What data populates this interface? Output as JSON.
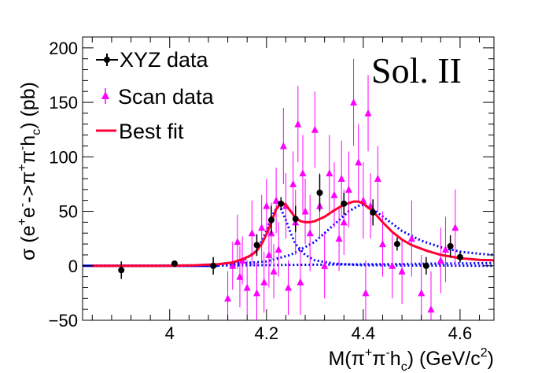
{
  "chart_data": {
    "type": "scatter",
    "title": "",
    "xlabel": "M(π⁺π⁻h_c) (GeV/c²)",
    "ylabel": "σ (e⁺e⁻->π⁺π⁻h_c) (pb)",
    "xlim": [
      3.82,
      4.67
    ],
    "ylim": [
      -50,
      210
    ],
    "x_ticks": [
      4.0,
      4.2,
      4.4,
      4.6
    ],
    "x_tick_labels": [
      "4",
      "4.2",
      "4.4",
      "4.6"
    ],
    "y_ticks": [
      -50,
      0,
      50,
      100,
      150,
      200
    ],
    "y_tick_labels": [
      "−50",
      "0",
      "50",
      "100",
      "150",
      "200"
    ],
    "annotation": "Sol. II",
    "legend_position": "top-left",
    "colors": {
      "xyz": "#000000",
      "scan": "#ff00ff",
      "best_fit": "#ff0033",
      "components": "#0000ff"
    },
    "series": [
      {
        "name": "XYZ data",
        "kind": "points",
        "marker": "circle",
        "points": [
          {
            "x": 3.9,
            "y": -4,
            "err": 8
          },
          {
            "x": 4.01,
            "y": 2,
            "err": 3
          },
          {
            "x": 4.09,
            "y": 0,
            "err": 8
          },
          {
            "x": 4.18,
            "y": 19,
            "err": 10
          },
          {
            "x": 4.21,
            "y": 42,
            "err": 13
          },
          {
            "x": 4.23,
            "y": 57,
            "err": 6
          },
          {
            "x": 4.26,
            "y": 43,
            "err": 12
          },
          {
            "x": 4.31,
            "y": 67,
            "err": 17
          },
          {
            "x": 4.36,
            "y": 57,
            "err": 10
          },
          {
            "x": 4.42,
            "y": 49,
            "err": 12
          },
          {
            "x": 4.47,
            "y": 20,
            "err": 6
          },
          {
            "x": 4.53,
            "y": 0,
            "err": 8
          },
          {
            "x": 4.58,
            "y": 18,
            "err": 10
          },
          {
            "x": 4.6,
            "y": 8,
            "err": 5
          }
        ]
      },
      {
        "name": "Scan data",
        "kind": "points",
        "marker": "triangle",
        "points": [
          {
            "x": 4.12,
            "y": -30,
            "err": 25
          },
          {
            "x": 4.13,
            "y": 0,
            "err": 22
          },
          {
            "x": 4.14,
            "y": 22,
            "err": 25
          },
          {
            "x": 4.145,
            "y": -10,
            "err": 28
          },
          {
            "x": 4.15,
            "y": 5,
            "err": 22
          },
          {
            "x": 4.16,
            "y": -20,
            "err": 25
          },
          {
            "x": 4.17,
            "y": 30,
            "err": 30
          },
          {
            "x": 4.18,
            "y": -25,
            "err": 28
          },
          {
            "x": 4.19,
            "y": 35,
            "err": 30
          },
          {
            "x": 4.195,
            "y": -15,
            "err": 28
          },
          {
            "x": 4.2,
            "y": 55,
            "err": 25
          },
          {
            "x": 4.205,
            "y": 10,
            "err": 30
          },
          {
            "x": 4.21,
            "y": 30,
            "err": 28
          },
          {
            "x": 4.215,
            "y": -5,
            "err": 25
          },
          {
            "x": 4.22,
            "y": 60,
            "err": 30
          },
          {
            "x": 4.225,
            "y": 15,
            "err": 25
          },
          {
            "x": 4.235,
            "y": 110,
            "err": 35
          },
          {
            "x": 4.24,
            "y": 55,
            "err": 30
          },
          {
            "x": 4.245,
            "y": -20,
            "err": 25
          },
          {
            "x": 4.255,
            "y": 75,
            "err": 30
          },
          {
            "x": 4.26,
            "y": 40,
            "err": 30
          },
          {
            "x": 4.265,
            "y": 130,
            "err": 35
          },
          {
            "x": 4.27,
            "y": -15,
            "err": 30
          },
          {
            "x": 4.275,
            "y": 85,
            "err": 35
          },
          {
            "x": 4.28,
            "y": 50,
            "err": 30
          },
          {
            "x": 4.29,
            "y": 30,
            "err": 35
          },
          {
            "x": 4.3,
            "y": 125,
            "err": 35
          },
          {
            "x": 4.31,
            "y": 55,
            "err": 30
          },
          {
            "x": 4.32,
            "y": 0,
            "err": 30
          },
          {
            "x": 4.33,
            "y": 85,
            "err": 35
          },
          {
            "x": 4.34,
            "y": 65,
            "err": 30
          },
          {
            "x": 4.35,
            "y": 25,
            "err": 30
          },
          {
            "x": 4.355,
            "y": 80,
            "err": 35
          },
          {
            "x": 4.36,
            "y": 40,
            "err": 30
          },
          {
            "x": 4.37,
            "y": 70,
            "err": 35
          },
          {
            "x": 4.38,
            "y": 150,
            "err": 40
          },
          {
            "x": 4.39,
            "y": 95,
            "err": 35
          },
          {
            "x": 4.4,
            "y": 60,
            "err": 35
          },
          {
            "x": 4.405,
            "y": -25,
            "err": 30
          },
          {
            "x": 4.41,
            "y": 140,
            "err": 35
          },
          {
            "x": 4.415,
            "y": 55,
            "err": 30
          },
          {
            "x": 4.43,
            "y": 80,
            "err": 30
          },
          {
            "x": 4.44,
            "y": 20,
            "err": 30
          },
          {
            "x": 4.46,
            "y": 0,
            "err": 30
          },
          {
            "x": 4.48,
            "y": -5,
            "err": 30
          },
          {
            "x": 4.5,
            "y": 25,
            "err": 35
          },
          {
            "x": 4.52,
            "y": -25,
            "err": 35
          },
          {
            "x": 4.54,
            "y": -40,
            "err": 35
          },
          {
            "x": 4.56,
            "y": 5,
            "err": 30
          },
          {
            "x": 4.57,
            "y": 15,
            "err": 30
          },
          {
            "x": 4.59,
            "y": 35,
            "err": 35
          }
        ]
      },
      {
        "name": "Best fit",
        "kind": "curve",
        "points": [
          {
            "x": 3.84,
            "y": 0
          },
          {
            "x": 4.0,
            "y": 0
          },
          {
            "x": 4.05,
            "y": 0.5
          },
          {
            "x": 4.1,
            "y": 1.5
          },
          {
            "x": 4.13,
            "y": 3
          },
          {
            "x": 4.15,
            "y": 6
          },
          {
            "x": 4.17,
            "y": 10
          },
          {
            "x": 4.18,
            "y": 14
          },
          {
            "x": 4.19,
            "y": 20
          },
          {
            "x": 4.2,
            "y": 29
          },
          {
            "x": 4.21,
            "y": 40
          },
          {
            "x": 4.22,
            "y": 52
          },
          {
            "x": 4.23,
            "y": 58
          },
          {
            "x": 4.24,
            "y": 56
          },
          {
            "x": 4.25,
            "y": 50
          },
          {
            "x": 4.26,
            "y": 44
          },
          {
            "x": 4.27,
            "y": 41
          },
          {
            "x": 4.28,
            "y": 40
          },
          {
            "x": 4.29,
            "y": 40
          },
          {
            "x": 4.3,
            "y": 41
          },
          {
            "x": 4.32,
            "y": 45
          },
          {
            "x": 4.34,
            "y": 51
          },
          {
            "x": 4.36,
            "y": 56
          },
          {
            "x": 4.38,
            "y": 59
          },
          {
            "x": 4.39,
            "y": 59
          },
          {
            "x": 4.4,
            "y": 57
          },
          {
            "x": 4.42,
            "y": 50
          },
          {
            "x": 4.44,
            "y": 40
          },
          {
            "x": 4.46,
            "y": 31
          },
          {
            "x": 4.48,
            "y": 24
          },
          {
            "x": 4.5,
            "y": 19
          },
          {
            "x": 4.53,
            "y": 14
          },
          {
            "x": 4.56,
            "y": 10
          },
          {
            "x": 4.6,
            "y": 7
          },
          {
            "x": 4.64,
            "y": 5.5
          },
          {
            "x": 4.67,
            "y": 5
          }
        ]
      },
      {
        "kind": "component",
        "points": [
          {
            "x": 3.84,
            "y": 0
          },
          {
            "x": 4.08,
            "y": 0
          },
          {
            "x": 4.12,
            "y": 1
          },
          {
            "x": 4.15,
            "y": 4
          },
          {
            "x": 4.18,
            "y": 14
          },
          {
            "x": 4.2,
            "y": 32
          },
          {
            "x": 4.21,
            "y": 45
          },
          {
            "x": 4.22,
            "y": 52
          },
          {
            "x": 4.225,
            "y": 54
          },
          {
            "x": 4.23,
            "y": 52
          },
          {
            "x": 4.24,
            "y": 42
          },
          {
            "x": 4.25,
            "y": 30
          },
          {
            "x": 4.26,
            "y": 20
          },
          {
            "x": 4.28,
            "y": 10
          },
          {
            "x": 4.3,
            "y": 5
          },
          {
            "x": 4.34,
            "y": 2
          },
          {
            "x": 4.4,
            "y": 0.5
          },
          {
            "x": 4.67,
            "y": 0
          }
        ]
      },
      {
        "kind": "component",
        "points": [
          {
            "x": 3.84,
            "y": 0
          },
          {
            "x": 4.1,
            "y": 0.5
          },
          {
            "x": 4.2,
            "y": 4
          },
          {
            "x": 4.25,
            "y": 10
          },
          {
            "x": 4.3,
            "y": 22
          },
          {
            "x": 4.34,
            "y": 38
          },
          {
            "x": 4.37,
            "y": 50
          },
          {
            "x": 4.39,
            "y": 55
          },
          {
            "x": 4.4,
            "y": 56
          },
          {
            "x": 4.42,
            "y": 52
          },
          {
            "x": 4.45,
            "y": 42
          },
          {
            "x": 4.48,
            "y": 32
          },
          {
            "x": 4.52,
            "y": 23
          },
          {
            "x": 4.56,
            "y": 17
          },
          {
            "x": 4.6,
            "y": 13
          },
          {
            "x": 4.64,
            "y": 11
          },
          {
            "x": 4.67,
            "y": 10
          }
        ]
      },
      {
        "kind": "component",
        "points": [
          {
            "x": 3.84,
            "y": 0
          },
          {
            "x": 4.05,
            "y": 0
          },
          {
            "x": 4.15,
            "y": 0.5
          },
          {
            "x": 4.3,
            "y": 1
          },
          {
            "x": 4.45,
            "y": 1.5
          },
          {
            "x": 4.55,
            "y": 2
          },
          {
            "x": 4.67,
            "y": 2.5
          }
        ]
      }
    ]
  }
}
